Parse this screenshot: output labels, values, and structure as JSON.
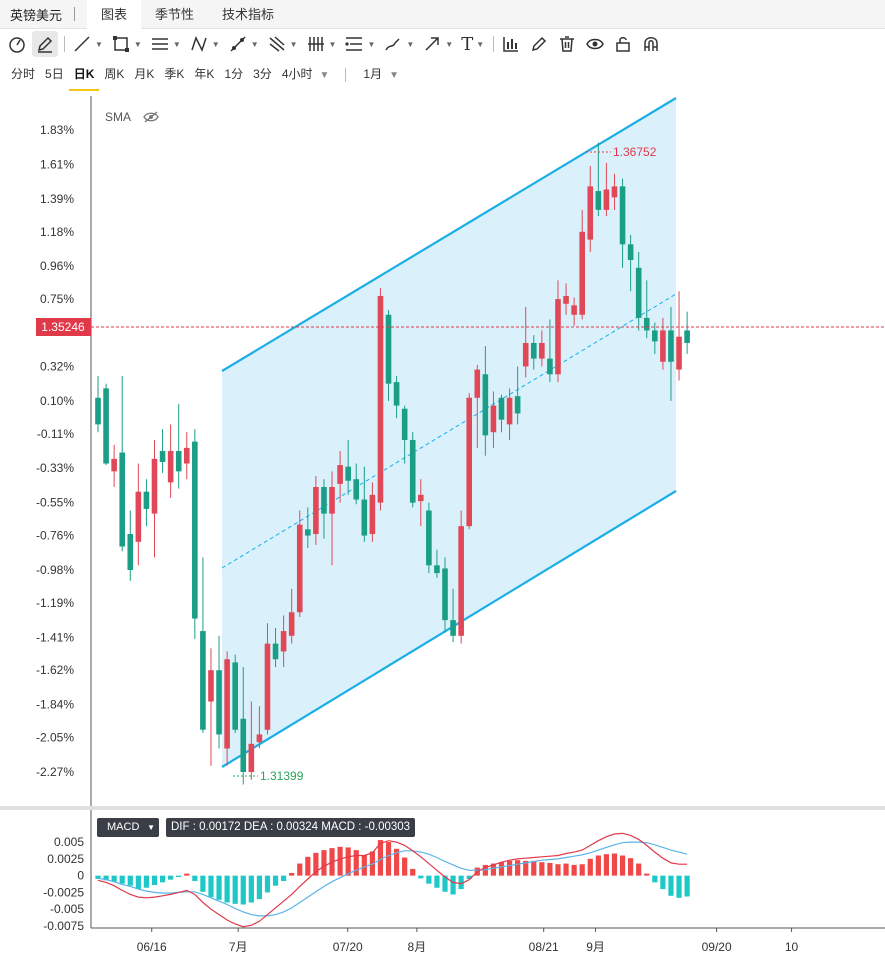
{
  "header": {
    "symbol": "英镑美元",
    "tabs": [
      {
        "label": "图表",
        "active": true
      },
      {
        "label": "季节性",
        "active": false
      },
      {
        "label": "技术指标",
        "active": false
      }
    ]
  },
  "toolbar": {
    "icons": [
      "cursor-icon",
      "pencil-icon",
      "line-icon",
      "rectangle-icon",
      "horizontal-lines-icon",
      "pattern-icon",
      "node-line-icon",
      "fork-icon",
      "vertical-lines-icon",
      "fibonacci-icon",
      "brush-icon",
      "arrow-icon",
      "text-icon",
      "indicator-icon",
      "edit-icon",
      "trash-icon",
      "eye-icon",
      "lock-icon",
      "magnet-icon"
    ],
    "text_tool_label": "T"
  },
  "periods": {
    "items": [
      {
        "label": "分时",
        "active": false
      },
      {
        "label": "5日",
        "active": false
      },
      {
        "label": "日K",
        "active": true
      },
      {
        "label": "周K",
        "active": false
      },
      {
        "label": "月K",
        "active": false
      },
      {
        "label": "季K",
        "active": false
      },
      {
        "label": "年K",
        "active": false
      },
      {
        "label": "1分",
        "active": false
      },
      {
        "label": "3分",
        "active": false
      },
      {
        "label": "4小时",
        "active": false
      }
    ],
    "range_label": "1月"
  },
  "colors": {
    "up": "#e04858",
    "down": "#1a9e86",
    "channel_line": "#1aaee8",
    "channel_fill": "#d6f0fb",
    "price_tag": "#e0394a",
    "macd_pos": "#f04848",
    "macd_neg": "#1ec8c8",
    "dif_line": "#e0394a",
    "dea_line": "#5ab4e8",
    "high_label": "#e0394a",
    "low_label": "#27a65a"
  },
  "chart_data": {
    "type": "candlestick",
    "sma_label": "SMA",
    "y_ticks": [
      "1.83%",
      "1.61%",
      "1.39%",
      "1.18%",
      "0.96%",
      "0.75%",
      "0.32%",
      "0.10%",
      "-0.11%",
      "-0.33%",
      "-0.55%",
      "-0.76%",
      "-0.98%",
      "-1.19%",
      "-1.41%",
      "-1.62%",
      "-1.84%",
      "-2.05%",
      "-2.27%"
    ],
    "y_range_pct": [
      -2.27,
      1.83
    ],
    "current_price": "1.35246",
    "high_label": "1.36752",
    "low_label": "1.31399",
    "x_labels": [
      "06/16",
      "7月",
      "07/20",
      "8月",
      "08/21",
      "9月",
      "09/20",
      "10"
    ],
    "x_label_days": [
      11,
      26,
      45,
      57,
      79,
      88,
      109,
      122
    ],
    "start_date": "2025-06-05",
    "candles": [
      {
        "o": 0.12,
        "c": -0.05,
        "h": 0.26,
        "l": -0.1
      },
      {
        "o": 0.18,
        "c": -0.3,
        "h": 0.21,
        "l": -0.31
      },
      {
        "o": -0.35,
        "c": -0.27,
        "h": -0.18,
        "l": -0.45
      },
      {
        "o": -0.23,
        "c": -0.83,
        "h": 0.26,
        "l": -0.86
      },
      {
        "o": -0.75,
        "c": -0.98,
        "h": -0.6,
        "l": -1.05
      },
      {
        "o": -0.8,
        "c": -0.48,
        "h": -0.3,
        "l": -0.95
      },
      {
        "o": -0.48,
        "c": -0.59,
        "h": -0.4,
        "l": -0.7
      },
      {
        "o": -0.62,
        "c": -0.27,
        "h": -0.15,
        "l": -0.9
      },
      {
        "o": -0.22,
        "c": -0.29,
        "h": -0.08,
        "l": -0.36
      },
      {
        "o": -0.42,
        "c": -0.22,
        "h": -0.05,
        "l": -0.52
      },
      {
        "o": -0.22,
        "c": -0.35,
        "h": 0.08,
        "l": -0.46
      },
      {
        "o": -0.3,
        "c": -0.2,
        "h": -0.1,
        "l": -0.4
      },
      {
        "o": -0.16,
        "c": -1.29,
        "h": -0.08,
        "l": -1.42
      },
      {
        "o": -1.37,
        "c": -2.0,
        "h": -0.9,
        "l": -2.02
      },
      {
        "o": -1.82,
        "c": -1.62,
        "h": -1.48,
        "l": -2.23
      },
      {
        "o": -1.62,
        "c": -2.03,
        "h": -1.4,
        "l": -2.12
      },
      {
        "o": -2.12,
        "c": -1.55,
        "h": -1.5,
        "l": -2.23
      },
      {
        "o": -1.57,
        "c": -2.0,
        "h": -1.52,
        "l": -2.02
      },
      {
        "o": -1.93,
        "c": -2.27,
        "h": -1.6,
        "l": -2.35
      },
      {
        "o": -2.27,
        "c": -2.09,
        "h": -1.82,
        "l": -2.32
      },
      {
        "o": -2.08,
        "c": -2.03,
        "h": -1.85,
        "l": -2.12
      },
      {
        "o": -2.0,
        "c": -1.45,
        "h": -1.32,
        "l": -2.03
      },
      {
        "o": -1.45,
        "c": -1.55,
        "h": -1.35,
        "l": -1.6
      },
      {
        "o": -1.5,
        "c": -1.37,
        "h": -1.27,
        "l": -1.6
      },
      {
        "o": -1.4,
        "c": -1.25,
        "h": -1.1,
        "l": -1.45
      },
      {
        "o": -1.25,
        "c": -0.69,
        "h": -0.6,
        "l": -1.28
      },
      {
        "o": -0.72,
        "c": -0.76,
        "h": -0.58,
        "l": -0.84
      },
      {
        "o": -0.75,
        "c": -0.45,
        "h": -0.38,
        "l": -0.82
      },
      {
        "o": -0.45,
        "c": -0.62,
        "h": -0.4,
        "l": -0.78
      },
      {
        "o": -0.62,
        "c": -0.45,
        "h": -0.35,
        "l": -0.95
      },
      {
        "o": -0.43,
        "c": -0.31,
        "h": -0.22,
        "l": -0.55
      },
      {
        "o": -0.32,
        "c": -0.41,
        "h": -0.15,
        "l": -0.5
      },
      {
        "o": -0.4,
        "c": -0.53,
        "h": -0.3,
        "l": -0.56
      },
      {
        "o": -0.53,
        "c": -0.76,
        "h": -0.32,
        "l": -0.8
      },
      {
        "o": -0.75,
        "c": -0.5,
        "h": -0.42,
        "l": -0.8
      },
      {
        "o": -0.55,
        "c": 0.77,
        "h": 0.82,
        "l": -0.6
      },
      {
        "o": 0.65,
        "c": 0.21,
        "h": 0.68,
        "l": 0.1
      },
      {
        "o": 0.22,
        "c": 0.07,
        "h": 0.26,
        "l": -0.01
      },
      {
        "o": 0.05,
        "c": -0.15,
        "h": 0.07,
        "l": -0.3
      },
      {
        "o": -0.15,
        "c": -0.55,
        "h": -0.1,
        "l": -0.58
      },
      {
        "o": -0.54,
        "c": -0.5,
        "h": -0.4,
        "l": -0.7
      },
      {
        "o": -0.6,
        "c": -0.95,
        "h": -0.55,
        "l": -1.0
      },
      {
        "o": -0.95,
        "c": -1.0,
        "h": -0.85,
        "l": -1.03
      },
      {
        "o": -0.97,
        "c": -1.3,
        "h": -0.9,
        "l": -1.38
      },
      {
        "o": -1.3,
        "c": -1.4,
        "h": -1.1,
        "l": -1.44
      },
      {
        "o": -1.4,
        "c": -0.7,
        "h": -0.6,
        "l": -1.45
      },
      {
        "o": -0.7,
        "c": 0.12,
        "h": 0.15,
        "l": -0.72
      },
      {
        "o": 0.12,
        "c": 0.3,
        "h": 0.33,
        "l": -0.2
      },
      {
        "o": 0.27,
        "c": -0.12,
        "h": 0.45,
        "l": -0.25
      },
      {
        "o": -0.1,
        "c": 0.07,
        "h": 0.16,
        "l": -0.2
      },
      {
        "o": 0.12,
        "c": -0.02,
        "h": 0.14,
        "l": -0.1
      },
      {
        "o": -0.05,
        "c": 0.12,
        "h": 0.18,
        "l": -0.15
      },
      {
        "o": 0.13,
        "c": 0.02,
        "h": 0.32,
        "l": -0.05
      },
      {
        "o": 0.32,
        "c": 0.47,
        "h": 0.7,
        "l": 0.25
      },
      {
        "o": 0.47,
        "c": 0.37,
        "h": 0.52,
        "l": 0.3
      },
      {
        "o": 0.37,
        "c": 0.47,
        "h": 0.55,
        "l": 0.32
      },
      {
        "o": 0.37,
        "c": 0.27,
        "h": 0.62,
        "l": 0.22
      },
      {
        "o": 0.27,
        "c": 0.75,
        "h": 0.87,
        "l": 0.22
      },
      {
        "o": 0.72,
        "c": 0.77,
        "h": 0.85,
        "l": 0.65
      },
      {
        "o": 0.65,
        "c": 0.71,
        "h": 0.76,
        "l": 0.58
      },
      {
        "o": 0.65,
        "c": 1.18,
        "h": 1.32,
        "l": 0.62
      },
      {
        "o": 1.13,
        "c": 1.47,
        "h": 1.6,
        "l": 1.05
      },
      {
        "o": 1.44,
        "c": 1.32,
        "h": 1.75,
        "l": 1.28
      },
      {
        "o": 1.32,
        "c": 1.45,
        "h": 1.62,
        "l": 1.28
      },
      {
        "o": 1.4,
        "c": 1.47,
        "h": 1.55,
        "l": 1.32
      },
      {
        "o": 1.47,
        "c": 1.1,
        "h": 1.52,
        "l": 0.95
      },
      {
        "o": 1.1,
        "c": 1.0,
        "h": 1.16,
        "l": 0.8
      },
      {
        "o": 0.95,
        "c": 0.63,
        "h": 1.05,
        "l": 0.55
      },
      {
        "o": 0.63,
        "c": 0.55,
        "h": 0.87,
        "l": 0.5
      },
      {
        "o": 0.55,
        "c": 0.48,
        "h": 0.6,
        "l": 0.4
      },
      {
        "o": 0.35,
        "c": 0.55,
        "h": 0.63,
        "l": 0.3
      },
      {
        "o": 0.55,
        "c": 0.35,
        "h": 0.7,
        "l": 0.1
      },
      {
        "o": 0.3,
        "c": 0.51,
        "h": 0.8,
        "l": 0.23
      },
      {
        "o": 0.55,
        "c": 0.47,
        "h": 0.67,
        "l": 0.4
      }
    ]
  },
  "macd": {
    "indicator_label": "MACD",
    "values_text": "DIF : 0.00172  DEA : 0.00324  MACD : -0.00303",
    "y_ticks": [
      "0.005",
      "0.0025",
      "0",
      "-0.0025",
      "-0.005",
      "-0.0075"
    ],
    "y_range": [
      -0.0075,
      0.0065
    ],
    "hist": [
      -0.0005,
      -0.0007,
      -0.0009,
      -0.0012,
      -0.0015,
      -0.002,
      -0.0018,
      -0.0014,
      -0.001,
      -0.0006,
      -0.0002,
      0.0003,
      -0.0008,
      -0.0024,
      -0.0032,
      -0.0036,
      -0.004,
      -0.0042,
      -0.0043,
      -0.004,
      -0.0035,
      -0.0025,
      -0.0015,
      -0.0008,
      0.0004,
      0.0018,
      0.0028,
      0.0034,
      0.0038,
      0.0041,
      0.0043,
      0.0042,
      0.0038,
      0.003,
      0.0036,
      0.0053,
      0.005,
      0.004,
      0.0027,
      0.001,
      -0.0004,
      -0.0012,
      -0.0018,
      -0.0024,
      -0.0028,
      -0.002,
      -0.0005,
      0.0012,
      0.0016,
      0.0018,
      0.002,
      0.0022,
      0.0023,
      0.0022,
      0.0022,
      0.002,
      0.0019,
      0.0017,
      0.0018,
      0.0016,
      0.0017,
      0.0025,
      0.003,
      0.0032,
      0.0033,
      0.003,
      0.0026,
      0.0018,
      0.0003,
      -0.001,
      -0.002,
      -0.003,
      -0.0033,
      -0.0031
    ],
    "dif": [
      -0.0007,
      -0.001,
      -0.0015,
      -0.0022,
      -0.0028,
      -0.0032,
      -0.0033,
      -0.0032,
      -0.003,
      -0.0028,
      -0.0025,
      -0.0022,
      -0.0028,
      -0.004,
      -0.005,
      -0.0058,
      -0.0066,
      -0.0072,
      -0.0076,
      -0.0074,
      -0.0068,
      -0.0058,
      -0.0048,
      -0.0038,
      -0.0028,
      -0.0016,
      -0.0005,
      0.0006,
      0.0014,
      0.002,
      0.0025,
      0.0028,
      0.003,
      0.003,
      0.0034,
      0.0048,
      0.0052,
      0.005,
      0.0045,
      0.0037,
      0.0028,
      0.0018,
      0.0008,
      -0.0002,
      -0.001,
      -0.0012,
      -0.0006,
      0.0006,
      0.0012,
      0.0016,
      0.002,
      0.0023,
      0.0025,
      0.0026,
      0.0027,
      0.0028,
      0.0029,
      0.003,
      0.0033,
      0.0035,
      0.0038,
      0.0045,
      0.0052,
      0.0058,
      0.0062,
      0.0063,
      0.006,
      0.0054,
      0.0045,
      0.0035,
      0.0026,
      0.0019,
      0.0017,
      0.0017
    ],
    "dea": [
      -0.0004,
      -0.0006,
      -0.0009,
      -0.0013,
      -0.0016,
      -0.002,
      -0.0023,
      -0.0025,
      -0.0026,
      -0.0026,
      -0.0025,
      -0.0024,
      -0.0024,
      -0.0028,
      -0.0033,
      -0.0038,
      -0.0043,
      -0.0049,
      -0.0054,
      -0.0058,
      -0.006,
      -0.006,
      -0.0058,
      -0.0054,
      -0.0048,
      -0.004,
      -0.0032,
      -0.0024,
      -0.0016,
      -0.0009,
      -0.0003,
      0.0003,
      0.0008,
      0.0013,
      0.0017,
      0.0024,
      0.003,
      0.0034,
      0.0037,
      0.0037,
      0.0035,
      0.0032,
      0.0027,
      0.0021,
      0.0016,
      0.0011,
      0.0008,
      0.0008,
      0.0009,
      0.0011,
      0.0013,
      0.0015,
      0.0017,
      0.0019,
      0.0021,
      0.0023,
      0.0024,
      0.0025,
      0.0027,
      0.0029,
      0.0031,
      0.0034,
      0.0038,
      0.0042,
      0.0046,
      0.0049,
      0.005,
      0.005,
      0.0049,
      0.0046,
      0.0042,
      0.0038,
      0.0035,
      0.0032
    ]
  }
}
